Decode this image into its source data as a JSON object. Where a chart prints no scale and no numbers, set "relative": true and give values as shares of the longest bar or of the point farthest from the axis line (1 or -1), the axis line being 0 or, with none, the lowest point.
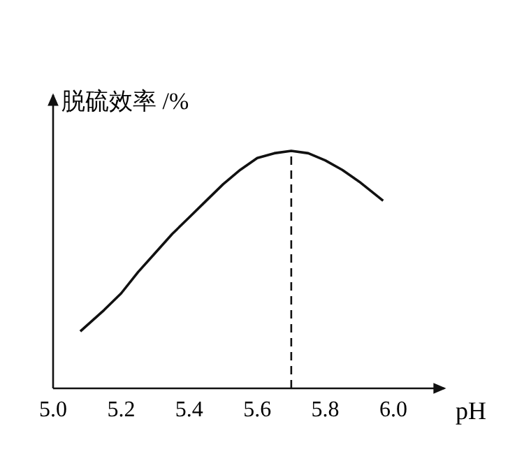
{
  "chart_data": {
    "type": "line",
    "ylabel": "脱硫效率 /%",
    "xlabel": "pH",
    "relative": true,
    "x": [
      5.08,
      5.15,
      5.2,
      5.25,
      5.3,
      5.35,
      5.4,
      5.45,
      5.5,
      5.55,
      5.6,
      5.65,
      5.7,
      5.75,
      5.8,
      5.85,
      5.9,
      5.97
    ],
    "series": [
      {
        "color": "#111111",
        "values": [
          0.24,
          0.33,
          0.4,
          0.49,
          0.57,
          0.65,
          0.72,
          0.79,
          0.86,
          0.92,
          0.97,
          0.99,
          1,
          0.99,
          0.96,
          0.92,
          0.87,
          0.79
        ]
      }
    ],
    "xlim": [
      5.0,
      6.15
    ],
    "xticks": [
      {
        "value": 5,
        "label": "5.0"
      },
      5.2,
      5.4,
      5.6,
      5.8,
      {
        "value": 6,
        "label": "6.0"
      }
    ],
    "ref_lines": [
      {
        "axis": "x",
        "value": 5.7,
        "line_style": "dashed",
        "color": "#111111"
      }
    ]
  }
}
